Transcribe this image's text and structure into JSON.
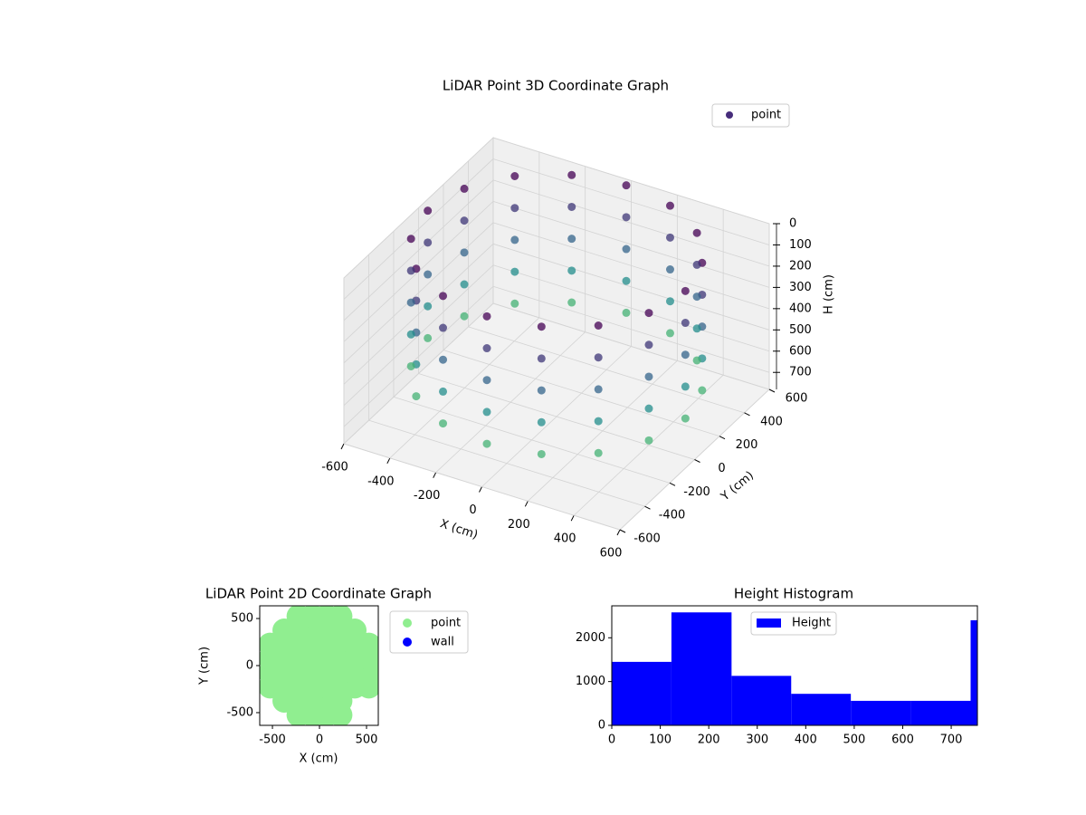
{
  "chart_data": [
    {
      "type": "scatter3d",
      "title": "LiDAR Point 3D Coordinate Graph",
      "x_label": "X (cm)",
      "y_label": "Y (cm)",
      "z_label": "H (cm)",
      "xlim": [
        -600,
        600
      ],
      "ylim": [
        -600,
        600
      ],
      "zlim": [
        0,
        780
      ],
      "z_inverted": true,
      "xticks": [
        -600,
        -400,
        -200,
        0,
        200,
        400,
        600
      ],
      "yticks": [
        -600,
        -400,
        -200,
        0,
        200,
        400,
        600
      ],
      "zticks": [
        0,
        100,
        200,
        300,
        400,
        500,
        600,
        700
      ],
      "colormap": "viridis",
      "grid": true,
      "legend": "upper right",
      "series": [
        {
          "name": "point",
          "color": "#472d7b",
          "x": [
            560,
            517,
            396,
            214,
            0,
            -214,
            -396,
            -517,
            -560,
            -517,
            -396,
            -214,
            0,
            214,
            396,
            517,
            560,
            517,
            396,
            214,
            0,
            -214,
            -396,
            -517,
            -560,
            -517,
            -396,
            -214,
            0,
            214,
            396,
            517,
            560,
            517,
            396,
            214,
            0,
            -214,
            -396,
            -517,
            -560,
            -517,
            -396,
            -214,
            0,
            214,
            396,
            517,
            560,
            517,
            396,
            214,
            0,
            -214,
            -396,
            -517,
            -560,
            -517,
            -396,
            -214,
            0,
            214,
            396,
            517,
            560,
            517,
            396,
            214,
            0,
            -214,
            -396,
            -517,
            -560,
            -517,
            -396,
            -214,
            0,
            214,
            396,
            517
          ],
          "y": [
            0,
            214,
            396,
            517,
            560,
            517,
            396,
            214,
            0,
            -214,
            -396,
            -517,
            -560,
            -517,
            -396,
            -214,
            0,
            214,
            396,
            517,
            560,
            517,
            396,
            214,
            0,
            -214,
            -396,
            -517,
            -560,
            -517,
            -396,
            -214,
            0,
            214,
            396,
            517,
            560,
            517,
            396,
            214,
            0,
            -214,
            -396,
            -517,
            -560,
            -517,
            -396,
            -214,
            0,
            214,
            396,
            517,
            560,
            517,
            396,
            214,
            0,
            -214,
            -396,
            -517,
            -560,
            -517,
            -396,
            -214,
            0,
            214,
            396,
            517,
            560,
            517,
            396,
            214,
            0,
            -214,
            -396,
            -517,
            -560,
            -517,
            -396,
            -214
          ],
          "z": [
            0,
            0,
            0,
            0,
            0,
            0,
            0,
            0,
            0,
            0,
            0,
            0,
            0,
            0,
            0,
            0,
            150,
            150,
            150,
            150,
            150,
            150,
            150,
            150,
            150,
            150,
            150,
            150,
            150,
            150,
            150,
            150,
            300,
            300,
            300,
            300,
            300,
            300,
            300,
            300,
            300,
            300,
            300,
            300,
            300,
            300,
            300,
            300,
            450,
            450,
            450,
            450,
            450,
            450,
            450,
            450,
            450,
            450,
            450,
            450,
            450,
            450,
            450,
            450,
            600,
            600,
            600,
            600,
            600,
            600,
            600,
            600,
            600,
            600,
            600,
            600,
            600,
            600,
            600,
            600
          ]
        }
      ]
    },
    {
      "type": "scatter",
      "title": "LiDAR Point 2D Coordinate Graph",
      "x_label": "X (cm)",
      "y_label": "Y (cm)",
      "xlim": [
        -635,
        625
      ],
      "ylim": [
        -635,
        635
      ],
      "xticks": [
        -500,
        0,
        500
      ],
      "yticks": [
        -500,
        0,
        500
      ],
      "legend": "outside upper right",
      "series": [
        {
          "name": "point",
          "color": "#90ee90",
          "x": [
            -525,
            -525,
            -525,
            -525,
            -375,
            -375,
            -375,
            -375,
            -375,
            -375,
            -225,
            -225,
            -225,
            -225,
            -225,
            -225,
            -225,
            -225,
            -75,
            -75,
            -75,
            -75,
            -75,
            -75,
            -75,
            -75,
            75,
            75,
            75,
            75,
            75,
            75,
            75,
            75,
            225,
            225,
            225,
            225,
            225,
            225,
            225,
            225,
            375,
            375,
            375,
            375,
            375,
            525,
            525,
            525,
            525
          ],
          "y": [
            -225,
            -75,
            75,
            225,
            -375,
            -225,
            -75,
            75,
            225,
            375,
            -525,
            -375,
            -225,
            -75,
            75,
            225,
            375,
            525,
            -525,
            -375,
            -225,
            -75,
            75,
            225,
            375,
            525,
            -525,
            -375,
            -225,
            -75,
            75,
            225,
            375,
            525,
            -525,
            -375,
            -225,
            -75,
            75,
            225,
            375,
            525,
            -225,
            -75,
            75,
            225,
            375,
            -225,
            -75,
            75,
            225
          ]
        },
        {
          "name": "wall",
          "color": "#0000ff",
          "x": [],
          "y": []
        }
      ]
    },
    {
      "type": "histogram",
      "title": "Height Histogram",
      "bins": [
        0,
        123,
        247,
        370,
        493,
        617,
        740,
        754
      ],
      "values": [
        1450,
        2580,
        1130,
        720,
        560,
        560,
        2400
      ],
      "series_name": "Height",
      "color": "#0000ff",
      "xlim": [
        0,
        754
      ],
      "ylim": [
        0,
        2730
      ],
      "xticks": [
        0,
        100,
        200,
        300,
        400,
        500,
        600,
        700
      ],
      "yticks": [
        0,
        1000,
        2000
      ],
      "legend": "upper center"
    }
  ]
}
